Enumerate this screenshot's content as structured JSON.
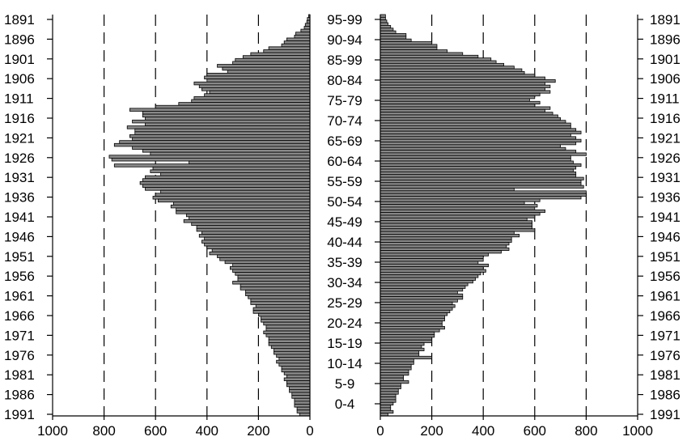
{
  "chart_data": {
    "type": "bar",
    "orientation": "horizontal",
    "left_axis": {
      "ticks": [
        1000,
        800,
        600,
        400,
        200,
        0
      ],
      "range": [
        1000,
        0
      ]
    },
    "right_axis": {
      "ticks": [
        0,
        200,
        400,
        600,
        800,
        1000
      ],
      "range": [
        0,
        1000
      ]
    },
    "left_year_labels": [
      "1891",
      "1896",
      "1901",
      "1906",
      "1911",
      "1916",
      "1921",
      "1926",
      "1931",
      "1936",
      "1941",
      "1946",
      "1951",
      "1956",
      "1961",
      "1966",
      "1971",
      "1976",
      "1981",
      "1986",
      "1991"
    ],
    "right_year_labels": [
      "1891",
      "1896",
      "1901",
      "1906",
      "1911",
      "1916",
      "1921",
      "1926",
      "1931",
      "1936",
      "1941",
      "1946",
      "1951",
      "1956",
      "1961",
      "1966",
      "1971",
      "1976",
      "1981",
      "1986",
      "1991"
    ],
    "age_groups": [
      "95-99",
      "90-94",
      "85-99",
      "80-84",
      "75-79",
      "70-74",
      "65-69",
      "60-64",
      "55-59",
      "50-54",
      "45-49",
      "40-44",
      "35-39",
      "30-34",
      "25-29",
      "20-24",
      "15-19",
      "10-14",
      "5-9",
      "0-4"
    ],
    "grid": true,
    "series": [
      {
        "side": "left",
        "values": [
          5,
          10,
          12,
          18,
          22,
          35,
          55,
          60,
          90,
          100,
          110,
          160,
          180,
          230,
          260,
          290,
          300,
          360,
          340,
          320,
          400,
          410,
          400,
          450,
          430,
          420,
          390,
          410,
          450,
          460,
          510,
          600,
          700,
          650,
          650,
          640,
          690,
          640,
          710,
          680,
          680,
          700,
          690,
          740,
          760,
          690,
          650,
          620,
          780,
          770,
          470,
          760,
          610,
          620,
          580,
          640,
          650,
          660,
          650,
          640,
          580,
          600,
          610,
          590,
          530,
          540,
          520,
          520,
          480,
          470,
          490,
          460,
          440,
          440,
          420,
          430,
          410,
          420,
          410,
          400,
          380,
          390,
          360,
          350,
          330,
          300,
          310,
          300,
          290,
          280,
          280,
          300,
          270,
          270,
          250,
          250,
          240,
          230,
          230,
          210,
          220,
          220,
          200,
          190,
          190,
          180,
          170,
          170,
          180,
          170,
          160,
          160,
          160,
          150,
          140,
          140,
          130,
          120,
          130,
          120,
          110,
          110,
          100,
          90,
          100,
          90,
          90,
          80,
          80,
          70,
          70,
          60,
          60,
          60,
          50,
          50,
          40
        ]
      },
      {
        "side": "right",
        "values": [
          20,
          20,
          25,
          30,
          40,
          50,
          60,
          100,
          100,
          120,
          200,
          220,
          220,
          260,
          320,
          380,
          430,
          450,
          480,
          520,
          550,
          560,
          600,
          640,
          680,
          640,
          660,
          640,
          660,
          620,
          600,
          580,
          620,
          600,
          660,
          640,
          670,
          690,
          700,
          720,
          740,
          740,
          760,
          780,
          740,
          760,
          780,
          760,
          700,
          720,
          760,
          800,
          740,
          740,
          750,
          780,
          760,
          750,
          760,
          760,
          790,
          780,
          780,
          790,
          520,
          800,
          800,
          780,
          620,
          560,
          610,
          600,
          640,
          620,
          600,
          570,
          590,
          590,
          590,
          600,
          520,
          540,
          510,
          510,
          500,
          490,
          500,
          470,
          420,
          400,
          400,
          380,
          420,
          400,
          410,
          390,
          380,
          370,
          360,
          340,
          330,
          320,
          300,
          320,
          320,
          300,
          280,
          290,
          280,
          270,
          260,
          250,
          250,
          240,
          240,
          250,
          230,
          210,
          210,
          200,
          200,
          170,
          160,
          170,
          150,
          150,
          200,
          130,
          130,
          120,
          120,
          110,
          110,
          90,
          90,
          110,
          80,
          80,
          70,
          70,
          60,
          60,
          60,
          50,
          40,
          40,
          50,
          30
        ]
      }
    ]
  }
}
